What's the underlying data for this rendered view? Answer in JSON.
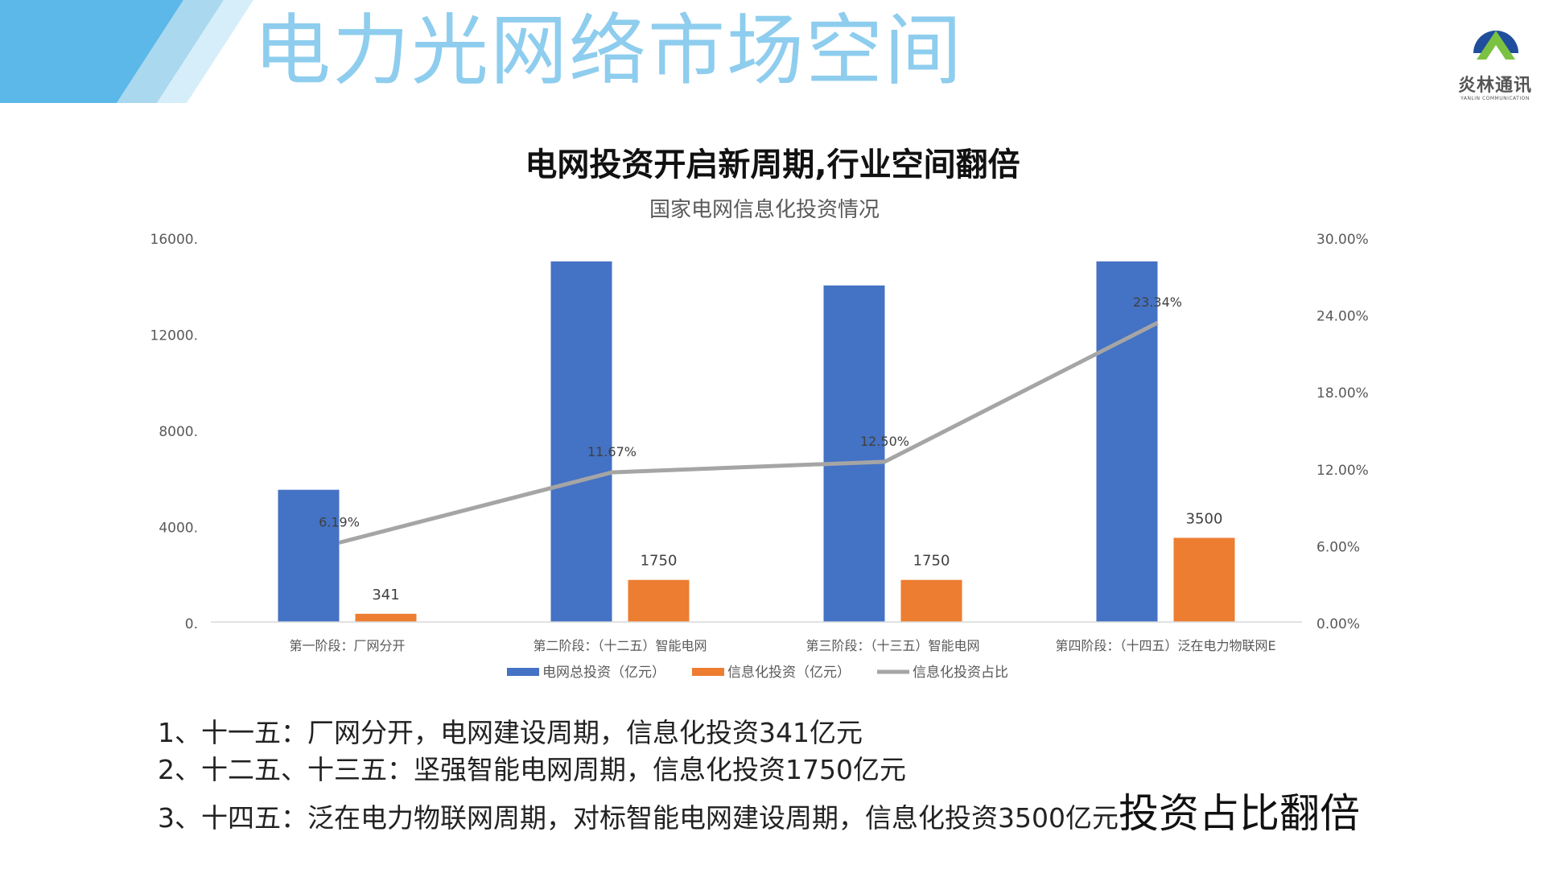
{
  "slide_title": "电力光网络市场空间",
  "logo": {
    "name": "炎林通讯",
    "subtitle": "YANLIN COMMUNICATION",
    "colors": {
      "dome": "#1F4E9C",
      "peak": "#7CC242"
    },
    "icon": "mountain-dome-logo"
  },
  "decor": {
    "colors": [
      "#5BB8E8",
      "#A9D8EF",
      "#D6EEF9"
    ]
  },
  "chart_data": {
    "type": "bar",
    "title": "电网投资开启新周期,行业空间翻倍",
    "subtitle": "国家电网信息化投资情况",
    "categories": [
      "第一阶段：厂网分开",
      "第二阶段：（十二五）智能电网",
      "第三阶段：（十三五）智能电网",
      "第四阶段：（十四五）泛在电力物联网E"
    ],
    "series": [
      {
        "name": "电网总投资（亿元）",
        "type": "bar",
        "axis": "left",
        "color": "#4472C4",
        "values": [
          5500,
          15000,
          14000,
          15000
        ],
        "labels": []
      },
      {
        "name": "信息化投资（亿元）",
        "type": "bar",
        "axis": "left",
        "color": "#ED7D31",
        "values": [
          341,
          1750,
          1750,
          3500
        ],
        "labels": [
          "341",
          "1750",
          "1750",
          "3500"
        ]
      },
      {
        "name": "信息化投资占比",
        "type": "line",
        "axis": "right",
        "color": "#A5A5A5",
        "values": [
          6.19,
          11.67,
          12.5,
          23.34
        ],
        "labels": [
          "6.19%",
          "11.67%",
          "12.50%",
          "23.34%"
        ]
      }
    ],
    "y_left": {
      "range": [
        0,
        16000
      ],
      "ticks": [
        0,
        4000,
        8000,
        12000,
        16000
      ],
      "tick_labels": [
        "0.",
        "4000.",
        "8000.",
        "12000.",
        "16000."
      ]
    },
    "y_right": {
      "range": [
        0,
        30
      ],
      "ticks": [
        0,
        6,
        12,
        18,
        24,
        30
      ],
      "tick_labels": [
        "0.00%",
        "6.00%",
        "12.00%",
        "18.00%",
        "24.00%",
        "30.00%"
      ]
    },
    "grid": false,
    "legend": "bottom",
    "axis_color": "#D9D9D9"
  },
  "notes": [
    {
      "text": "1、十一五：厂网分开，电网建设周期，信息化投资341亿元",
      "emphasis": ""
    },
    {
      "text": "2、十二五、十三五：坚强智能电网周期，信息化投资1750亿元",
      "emphasis": ""
    },
    {
      "text": "3、十四五：泛在电力物联网周期，对标智能电网建设周期，信息化投资3500亿元",
      "emphasis": "投资占比翻倍"
    }
  ]
}
